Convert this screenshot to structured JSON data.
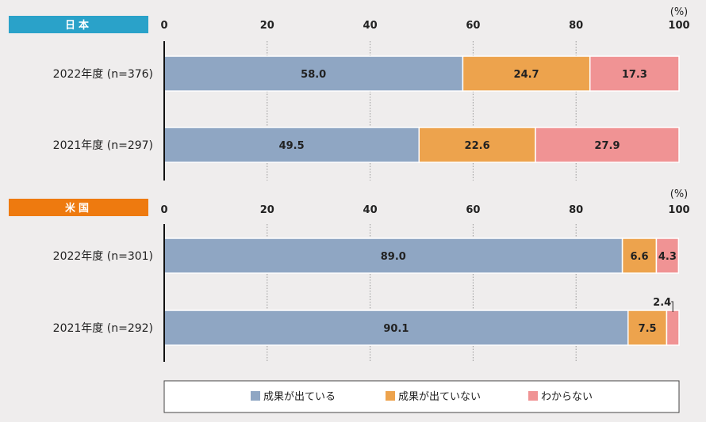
{
  "chart_data": [
    {
      "type": "bar",
      "orientation": "horizontal",
      "stacked": true,
      "region_label": "日本",
      "unit": "(%)",
      "xlim": [
        0,
        100
      ],
      "ticks": [
        0,
        20,
        40,
        60,
        80,
        100
      ],
      "categories": [
        "2022年度 (n=376)",
        "2021年度 (n=297)"
      ],
      "series": [
        {
          "name": "成果が出ている",
          "values": [
            58.0,
            49.5
          ]
        },
        {
          "name": "成果が出ていない",
          "values": [
            24.7,
            22.6
          ]
        },
        {
          "name": "わからない",
          "values": [
            17.3,
            27.9
          ]
        }
      ]
    },
    {
      "type": "bar",
      "orientation": "horizontal",
      "stacked": true,
      "region_label": "米国",
      "unit": "(%)",
      "xlim": [
        0,
        100
      ],
      "ticks": [
        0,
        20,
        40,
        60,
        80,
        100
      ],
      "categories": [
        "2022年度 (n=301)",
        "2021年度 (n=292)"
      ],
      "series": [
        {
          "name": "成果が出ている",
          "values": [
            89.0,
            90.1
          ]
        },
        {
          "name": "成果が出ていない",
          "values": [
            6.6,
            7.5
          ]
        },
        {
          "name": "わからない",
          "values": [
            4.3,
            2.4
          ]
        }
      ]
    }
  ],
  "legend": [
    "成果が出ている",
    "成果が出ていない",
    "わからない"
  ],
  "colors": {
    "series": [
      "#8fa6c3",
      "#eda34d",
      "#f09394"
    ],
    "japan_badge": "#2aa2c9",
    "us_badge": "#ee7a0f",
    "background": "#efeded",
    "axis": "#111111"
  }
}
